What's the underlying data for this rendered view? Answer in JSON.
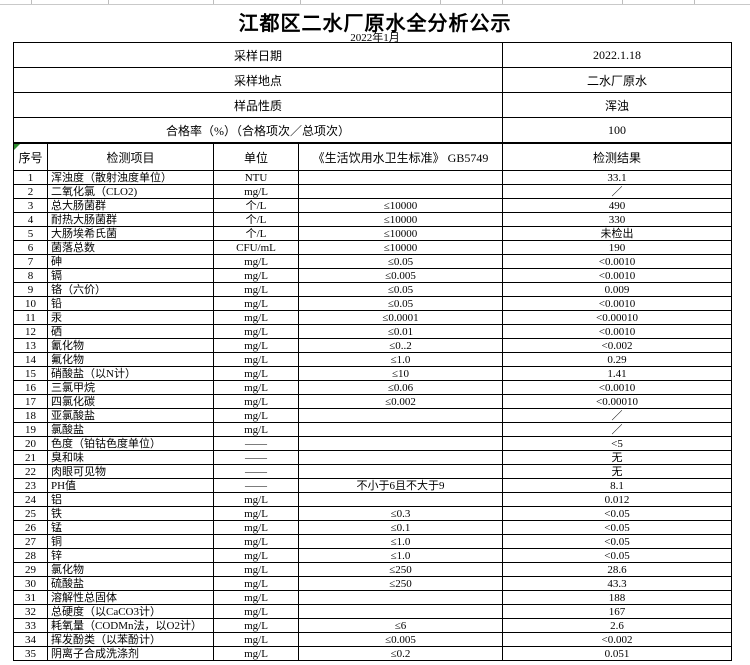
{
  "page": {
    "title": "江都区二水厂原水全分析公示",
    "subtitle": "2022年1月"
  },
  "colors": {
    "border": "#000000",
    "green_marker": "#2e8b2e",
    "gridline": "#c9c9c9"
  },
  "info_table": {
    "rows": [
      {
        "label": "采样日期",
        "value": "2022.1.18"
      },
      {
        "label": "采样地点",
        "value": "二水厂原水"
      },
      {
        "label": "样品性质",
        "value": "浑浊"
      },
      {
        "label": "合格率（%）（合格项次／总项次）",
        "value": "100"
      }
    ]
  },
  "results_table": {
    "headers": [
      "序号",
      "检测项目",
      "单位",
      "《生活饮用水卫生标准》 GB5749",
      "检测结果"
    ],
    "rows": [
      {
        "no": "1",
        "item": "浑浊度（散射浊度单位）",
        "unit": "NTU",
        "standard": "",
        "result": "33.1"
      },
      {
        "no": "2",
        "item": "二氧化氯（CLO2)",
        "unit": "mg/L",
        "standard": "",
        "result": "／"
      },
      {
        "no": "3",
        "item": "总大肠菌群",
        "unit": "个/L",
        "standard": "≤10000",
        "result": "490"
      },
      {
        "no": "4",
        "item": "耐热大肠菌群",
        "unit": "个/L",
        "standard": "≤10000",
        "result": "330"
      },
      {
        "no": "5",
        "item": "大肠埃希氏菌",
        "unit": "个/L",
        "standard": "≤10000",
        "result": "未检出"
      },
      {
        "no": "6",
        "item": "菌落总数",
        "unit": "CFU/mL",
        "standard": "≤10000",
        "result": "190"
      },
      {
        "no": "7",
        "item": "砷",
        "unit": "mg/L",
        "standard": "≤0.05",
        "result": "<0.0010"
      },
      {
        "no": "8",
        "item": "镉",
        "unit": "mg/L",
        "standard": "≤0.005",
        "result": "<0.0010"
      },
      {
        "no": "9",
        "item": "铬（六价）",
        "unit": "mg/L",
        "standard": "≤0.05",
        "result": "0.009"
      },
      {
        "no": "10",
        "item": "铅",
        "unit": "mg/L",
        "standard": "≤0.05",
        "result": "<0.0010"
      },
      {
        "no": "11",
        "item": "汞",
        "unit": "mg/L",
        "standard": "≤0.0001",
        "result": "<0.00010"
      },
      {
        "no": "12",
        "item": "硒",
        "unit": "mg/L",
        "standard": "≤0.01",
        "result": "<0.0010"
      },
      {
        "no": "13",
        "item": "氰化物",
        "unit": "mg/L",
        "standard": "≤0..2",
        "result": "<0.002"
      },
      {
        "no": "14",
        "item": "氟化物",
        "unit": "mg/L",
        "standard": "≤1.0",
        "result": "0.29"
      },
      {
        "no": "15",
        "item": "硝酸盐（以N计）",
        "unit": "mg/L",
        "standard": "≤10",
        "result": "1.41"
      },
      {
        "no": "16",
        "item": "三氯甲烷",
        "unit": "mg/L",
        "standard": "≤0.06",
        "result": "<0.0010"
      },
      {
        "no": "17",
        "item": "四氯化碳",
        "unit": "mg/L",
        "standard": "≤0.002",
        "result": "<0.00010"
      },
      {
        "no": "18",
        "item": "亚氯酸盐",
        "unit": "mg/L",
        "standard": "",
        "result": "／"
      },
      {
        "no": "19",
        "item": "氯酸盐",
        "unit": "mg/L",
        "standard": "",
        "result": "／"
      },
      {
        "no": "20",
        "item": "色度（铂钴色度单位）",
        "unit": "——",
        "standard": "",
        "result": "<5"
      },
      {
        "no": "21",
        "item": "臭和味",
        "unit": "——",
        "standard": "",
        "result": "无"
      },
      {
        "no": "22",
        "item": "肉眼可见物",
        "unit": "——",
        "standard": "",
        "result": "无"
      },
      {
        "no": "23",
        "item": "PH值",
        "unit": "——",
        "standard": "不小于6且不大于9",
        "result": "8.1"
      },
      {
        "no": "24",
        "item": "铝",
        "unit": "mg/L",
        "standard": "",
        "result": "0.012"
      },
      {
        "no": "25",
        "item": "铁",
        "unit": "mg/L",
        "standard": "≤0.3",
        "result": "<0.05"
      },
      {
        "no": "26",
        "item": "锰",
        "unit": "mg/L",
        "standard": "≤0.1",
        "result": "<0.05"
      },
      {
        "no": "27",
        "item": "铜",
        "unit": "mg/L",
        "standard": "≤1.0",
        "result": "<0.05"
      },
      {
        "no": "28",
        "item": "锌",
        "unit": "mg/L",
        "standard": "≤1.0",
        "result": "<0.05"
      },
      {
        "no": "29",
        "item": "氯化物",
        "unit": "mg/L",
        "standard": "≤250",
        "result": "28.6"
      },
      {
        "no": "30",
        "item": "硫酸盐",
        "unit": "mg/L",
        "standard": "≤250",
        "result": "43.3"
      },
      {
        "no": "31",
        "item": "溶解性总固体",
        "unit": "mg/L",
        "standard": "",
        "result": "188"
      },
      {
        "no": "32",
        "item": "总硬度（以CaCO3计）",
        "unit": "mg/L",
        "standard": "",
        "result": "167"
      },
      {
        "no": "33",
        "item": "耗氧量（CODMn法，以O2计）",
        "unit": "mg/L",
        "standard": "≤6",
        "result": "2.6"
      },
      {
        "no": "34",
        "item": "挥发酚类（以苯酚计）",
        "unit": "mg/L",
        "standard": "≤0.005",
        "result": "<0.002"
      },
      {
        "no": "35",
        "item": "阴离子合成洗涤剂",
        "unit": "mg/L",
        "standard": "≤0.2",
        "result": "0.051"
      }
    ]
  }
}
